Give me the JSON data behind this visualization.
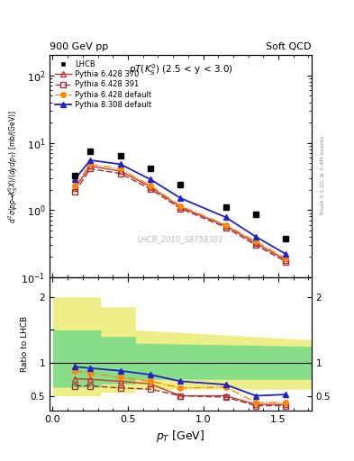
{
  "lhcb_x": [
    0.15,
    0.25,
    0.45,
    0.65,
    0.85,
    1.15,
    1.35,
    1.55
  ],
  "lhcb_y": [
    3.2,
    7.5,
    6.5,
    4.2,
    2.4,
    1.1,
    0.85,
    0.38
  ],
  "py6_370_x": [
    0.15,
    0.25,
    0.45,
    0.65,
    0.85,
    1.15,
    1.35,
    1.55
  ],
  "py6_370_y": [
    2.1,
    4.5,
    3.8,
    2.2,
    1.1,
    0.58,
    0.32,
    0.18
  ],
  "py6_391_x": [
    0.15,
    0.25,
    0.45,
    0.65,
    0.85,
    1.15,
    1.35,
    1.55
  ],
  "py6_391_y": [
    1.85,
    4.1,
    3.5,
    2.05,
    1.05,
    0.55,
    0.3,
    0.17
  ],
  "py6_def_x": [
    0.15,
    0.25,
    0.45,
    0.65,
    0.85,
    1.15,
    1.35,
    1.55
  ],
  "py6_def_y": [
    2.3,
    4.8,
    4.1,
    2.3,
    1.15,
    0.6,
    0.34,
    0.19
  ],
  "py8_def_x": [
    0.15,
    0.25,
    0.45,
    0.65,
    0.85,
    1.15,
    1.35,
    1.55
  ],
  "py8_def_y": [
    2.9,
    5.5,
    4.8,
    2.85,
    1.5,
    0.78,
    0.4,
    0.22
  ],
  "ratio_py6_370": [
    0.76,
    0.75,
    0.72,
    0.68,
    0.5,
    0.5,
    0.37,
    0.37
  ],
  "ratio_py6_391": [
    0.65,
    0.65,
    0.62,
    0.6,
    0.5,
    0.48,
    0.35,
    0.35
  ],
  "ratio_py6_def": [
    0.88,
    0.84,
    0.78,
    0.72,
    0.62,
    0.63,
    0.4,
    0.4
  ],
  "ratio_py8_def": [
    0.94,
    0.92,
    0.88,
    0.82,
    0.72,
    0.67,
    0.5,
    0.52
  ],
  "color_lhcb": "#000000",
  "color_py6_370": "#cc3333",
  "color_py6_391": "#993333",
  "color_py6_def": "#ff8800",
  "color_py8_def": "#2222cc",
  "color_yellow": "#eeee88",
  "color_green": "#88dd88",
  "xlim": [
    -0.02,
    1.72
  ],
  "ylim_main": [
    0.1,
    200
  ],
  "ylim_ratio": [
    0.28,
    2.3
  ]
}
